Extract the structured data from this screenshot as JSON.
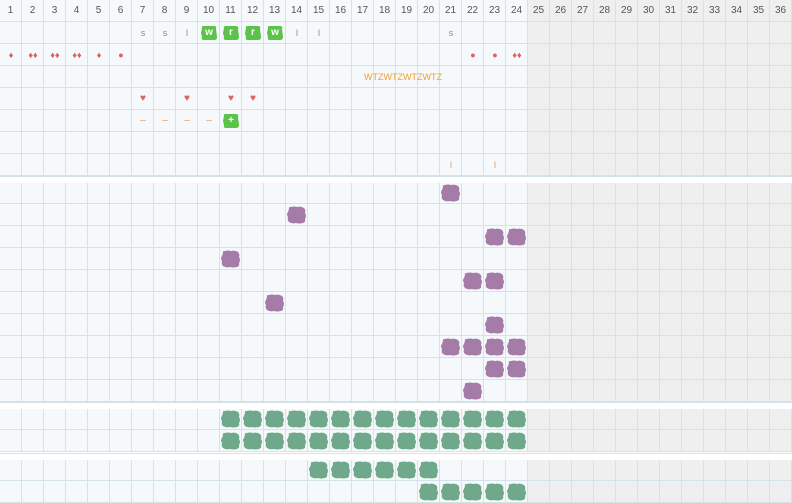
{
  "columns": [
    "1",
    "2",
    "3",
    "4",
    "5",
    "6",
    "7",
    "8",
    "9",
    "10",
    "11",
    "12",
    "13",
    "14",
    "15",
    "16",
    "17",
    "18",
    "19",
    "20",
    "21",
    "22",
    "23",
    "24",
    "25",
    "26",
    "27",
    "28",
    "29",
    "30",
    "31",
    "32",
    "33",
    "34",
    "35",
    "36"
  ],
  "active_columns": 24,
  "colors": {
    "grid_line": "#d4e3ea",
    "active_bg": "#f5f9fb",
    "inactive_bg": "#efefef",
    "purple_blob": "#a57ca8",
    "green_blob": "#6fa88a",
    "bright_green": "#5cc34a",
    "red_marker": "#e06060",
    "orange_marker": "#f29250",
    "label_yellow": "#f0a030",
    "letter_marker": "#b07878"
  },
  "top_rows": {
    "row1_markers": [
      {
        "col": 7,
        "text": "s"
      },
      {
        "col": 8,
        "text": "s"
      },
      {
        "col": 9,
        "text": "l"
      },
      {
        "col": 14,
        "text": "l"
      },
      {
        "col": 15,
        "text": "l"
      },
      {
        "col": 21,
        "text": "s"
      }
    ],
    "row1_tags": [
      {
        "col": 10,
        "text": "w"
      },
      {
        "col": 11,
        "text": "r"
      },
      {
        "col": 12,
        "text": "r"
      },
      {
        "col": 13,
        "text": "w"
      }
    ],
    "row2_markers": [
      {
        "col": 1,
        "text": "♦"
      },
      {
        "col": 2,
        "text": "♦♦"
      },
      {
        "col": 3,
        "text": "♦♦"
      },
      {
        "col": 4,
        "text": "♦♦"
      },
      {
        "col": 5,
        "text": "♦"
      },
      {
        "col": 6,
        "text": "●"
      },
      {
        "col": 22,
        "text": "●"
      },
      {
        "col": 23,
        "text": "●"
      },
      {
        "col": 24,
        "text": "♦♦"
      }
    ],
    "row3_label": {
      "text": "WTZWTZWTZWTZ"
    },
    "row4_hearts": [
      {
        "col": 7,
        "text": "♥"
      },
      {
        "col": 9,
        "text": "♥"
      },
      {
        "col": 11,
        "text": "♥"
      },
      {
        "col": 12,
        "text": "♥"
      }
    ],
    "row5_dashes": [
      {
        "col": 7,
        "text": "–"
      },
      {
        "col": 8,
        "text": "–"
      },
      {
        "col": 9,
        "text": "–"
      },
      {
        "col": 10,
        "text": "–"
      }
    ],
    "row5_plus": {
      "col": 11,
      "text": "+"
    },
    "row7_ticks": [
      {
        "col": 21,
        "text": "l"
      },
      {
        "col": 23,
        "text": "l"
      }
    ]
  },
  "purple_section": {
    "blobs": [
      [
        0,
        21
      ],
      [
        1,
        14
      ],
      [
        2,
        23
      ],
      [
        2,
        24
      ],
      [
        3,
        11
      ],
      [
        4,
        22
      ],
      [
        4,
        23
      ],
      [
        5,
        13
      ],
      [
        6,
        23
      ],
      [
        7,
        21
      ],
      [
        7,
        22
      ],
      [
        7,
        23
      ],
      [
        7,
        24
      ],
      [
        8,
        23
      ],
      [
        8,
        24
      ],
      [
        9,
        22
      ]
    ]
  },
  "green_section1": {
    "rows": [
      {
        "start": 11,
        "end": 24
      },
      {
        "start": 11,
        "end": 24
      }
    ]
  },
  "green_section2": {
    "rows": [
      {
        "start": 15,
        "end": 20
      },
      {
        "start": 20,
        "end": 24
      }
    ]
  }
}
